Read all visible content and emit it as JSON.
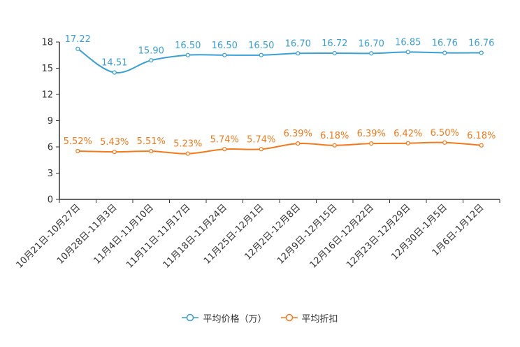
{
  "chart_data": {
    "type": "line",
    "title": "",
    "xlabel": "",
    "ylabel": "",
    "ylim": [
      0,
      18
    ],
    "yticks": [
      0,
      3,
      6,
      9,
      12,
      15,
      18
    ],
    "grid": false,
    "legend_position": "bottom-center",
    "categories": [
      "10月21日-10月27日",
      "10月28日-11月3日",
      "11月4日-11月10日",
      "11月11日-11月17日",
      "11月18日-11月24日",
      "11月25日-12月1日",
      "12月2日-12月8日",
      "12月9日-12月15日",
      "12月16日-12月22日",
      "12月23日-12月29日",
      "12月30日-1月5日",
      "1月6日-1月12日"
    ],
    "series": [
      {
        "name": "平均价格（万）",
        "color": "#3b9fd0",
        "values": [
          17.22,
          14.51,
          15.9,
          16.5,
          16.5,
          16.5,
          16.7,
          16.72,
          16.7,
          16.85,
          16.76,
          16.76
        ],
        "labels": [
          "17.22",
          "14.51",
          "15.90",
          "16.50",
          "16.50",
          "16.50",
          "16.70",
          "16.72",
          "16.70",
          "16.85",
          "16.76",
          "16.76"
        ]
      },
      {
        "name": "平均折扣",
        "color": "#f07b1e",
        "values": [
          5.52,
          5.43,
          5.51,
          5.23,
          5.74,
          5.74,
          6.39,
          6.18,
          6.39,
          6.42,
          6.5,
          6.18
        ],
        "labels": [
          "5.52%",
          "5.43%",
          "5.51%",
          "5.23%",
          "5.74%",
          "5.74%",
          "6.39%",
          "6.18%",
          "6.39%",
          "6.42%",
          "6.50%",
          "6.18%"
        ]
      }
    ]
  }
}
